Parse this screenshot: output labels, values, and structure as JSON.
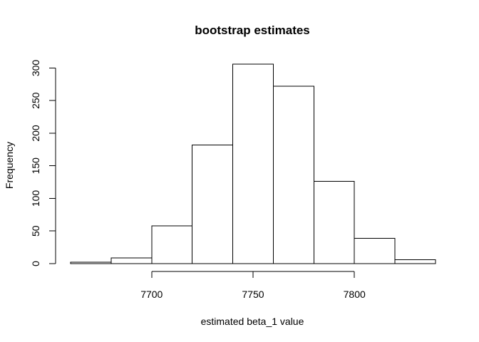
{
  "chart_data": {
    "type": "bar",
    "title": "bootstrap estimates",
    "xlabel": "estimated beta_1 value",
    "ylabel": "Frequency",
    "bins": [
      {
        "from": 7660,
        "to": 7680,
        "count": 2
      },
      {
        "from": 7680,
        "to": 7700,
        "count": 9
      },
      {
        "from": 7700,
        "to": 7720,
        "count": 58
      },
      {
        "from": 7720,
        "to": 7740,
        "count": 182
      },
      {
        "from": 7740,
        "to": 7760,
        "count": 306
      },
      {
        "from": 7760,
        "to": 7780,
        "count": 272
      },
      {
        "from": 7780,
        "to": 7800,
        "count": 126
      },
      {
        "from": 7800,
        "to": 7820,
        "count": 39
      },
      {
        "from": 7820,
        "to": 7840,
        "count": 6
      }
    ],
    "xlim": [
      7660,
      7840
    ],
    "ylim": [
      0,
      306
    ],
    "x_ticks": [
      7700,
      7750,
      7800
    ],
    "y_ticks": [
      0,
      50,
      100,
      150,
      200,
      250,
      300
    ],
    "x_tick_labels": [
      "7700",
      "7750",
      "7800"
    ],
    "y_tick_labels": [
      "0",
      "50",
      "100",
      "150",
      "200",
      "250",
      "300"
    ],
    "grid": false,
    "legend": "none"
  }
}
